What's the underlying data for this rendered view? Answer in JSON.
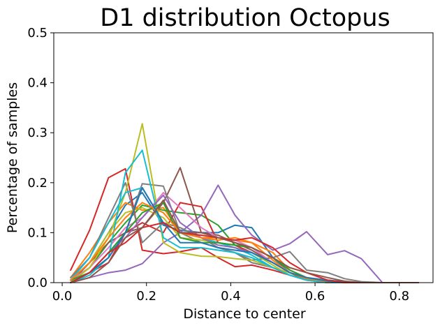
{
  "chart_data": {
    "type": "line",
    "title": "D1 distribution Octopus",
    "xlabel": "Distance to center",
    "ylabel": "Percentage of samples",
    "xlim": [
      -0.02,
      0.88
    ],
    "ylim": [
      0.0,
      0.5
    ],
    "xticks": [
      0.0,
      0.2,
      0.4,
      0.6,
      0.8
    ],
    "xtick_labels": [
      "0.0",
      "0.2",
      "0.4",
      "0.6",
      "0.8"
    ],
    "yticks": [
      0.0,
      0.1,
      0.2,
      0.3,
      0.4,
      0.5
    ],
    "ytick_labels": [
      "0.0",
      "0.1",
      "0.2",
      "0.3",
      "0.4",
      "0.5"
    ],
    "grid": false,
    "series": [
      {
        "color": "#1f77b4",
        "x": [
          0.02,
          0.065,
          0.11,
          0.15,
          0.19,
          0.24,
          0.28,
          0.33,
          0.37,
          0.41,
          0.45,
          0.5,
          0.54,
          0.58,
          0.63,
          0.67,
          0.71,
          0.76,
          0.8,
          0.845
        ],
        "y": [
          0.005,
          0.04,
          0.1,
          0.155,
          0.18,
          0.115,
          0.105,
          0.1,
          0.1,
          0.115,
          0.11,
          0.05,
          0.02,
          0.01,
          0.005,
          0.002,
          0,
          0,
          0,
          0
        ]
      },
      {
        "color": "#ff7f0e",
        "x": [
          0.02,
          0.065,
          0.11,
          0.15,
          0.19,
          0.24,
          0.28,
          0.33,
          0.37,
          0.41,
          0.45,
          0.5,
          0.54,
          0.58,
          0.63,
          0.67,
          0.71,
          0.76,
          0.8,
          0.845
        ],
        "y": [
          0.01,
          0.06,
          0.12,
          0.16,
          0.145,
          0.15,
          0.1,
          0.09,
          0.09,
          0.085,
          0.08,
          0.06,
          0.025,
          0.01,
          0.003,
          0,
          0,
          0,
          0,
          0
        ]
      },
      {
        "color": "#2ca02c",
        "x": [
          0.02,
          0.065,
          0.11,
          0.15,
          0.19,
          0.24,
          0.28,
          0.33,
          0.37,
          0.41,
          0.45,
          0.5,
          0.54,
          0.58,
          0.63,
          0.67,
          0.71,
          0.76,
          0.8,
          0.845
        ],
        "y": [
          0.0,
          0.03,
          0.08,
          0.12,
          0.155,
          0.145,
          0.14,
          0.135,
          0.115,
          0.075,
          0.06,
          0.04,
          0.02,
          0.005,
          0,
          0,
          0,
          0,
          0,
          0
        ]
      },
      {
        "color": "#d62728",
        "x": [
          0.02,
          0.065,
          0.11,
          0.15,
          0.19,
          0.24,
          0.28,
          0.33,
          0.37,
          0.41,
          0.45,
          0.5,
          0.54,
          0.58,
          0.63,
          0.67,
          0.71,
          0.76,
          0.8,
          0.845
        ],
        "y": [
          0.025,
          0.105,
          0.21,
          0.228,
          0.065,
          0.058,
          0.062,
          0.07,
          0.05,
          0.032,
          0.035,
          0.025,
          0.015,
          0.005,
          0,
          0,
          0,
          0,
          0,
          0
        ]
      },
      {
        "color": "#d62728",
        "x": [
          0.02,
          0.065,
          0.11,
          0.15,
          0.19,
          0.24,
          0.28,
          0.33,
          0.37,
          0.41,
          0.45,
          0.5,
          0.54,
          0.58,
          0.63,
          0.67,
          0.71,
          0.76,
          0.8,
          0.845
        ],
        "y": [
          0.0,
          0.02,
          0.04,
          0.1,
          0.12,
          0.1,
          0.16,
          0.152,
          0.08,
          0.075,
          0.06,
          0.04,
          0.02,
          0.01,
          0.002,
          0,
          0,
          0,
          0,
          0
        ]
      },
      {
        "color": "#9467bd",
        "x": [
          0.02,
          0.065,
          0.11,
          0.15,
          0.19,
          0.24,
          0.28,
          0.33,
          0.37,
          0.41,
          0.45,
          0.5,
          0.54,
          0.58,
          0.63,
          0.67,
          0.71,
          0.76,
          0.8,
          0.845
        ],
        "y": [
          0.0,
          0.01,
          0.02,
          0.025,
          0.038,
          0.08,
          0.1,
          0.135,
          0.195,
          0.135,
          0.095,
          0.065,
          0.078,
          0.102,
          0.056,
          0.064,
          0.048,
          0,
          0,
          0
        ]
      },
      {
        "color": "#8c564b",
        "x": [
          0.02,
          0.065,
          0.11,
          0.15,
          0.19,
          0.24,
          0.28,
          0.33,
          0.37,
          0.41,
          0.45,
          0.5,
          0.54,
          0.58,
          0.63,
          0.67,
          0.71,
          0.76,
          0.8,
          0.845
        ],
        "y": [
          0.0,
          0.04,
          0.08,
          0.1,
          0.11,
          0.16,
          0.23,
          0.1,
          0.095,
          0.08,
          0.065,
          0.04,
          0.02,
          0.005,
          0,
          0,
          0,
          0,
          0,
          0
        ]
      },
      {
        "color": "#e377c2",
        "x": [
          0.02,
          0.065,
          0.11,
          0.15,
          0.19,
          0.24,
          0.28,
          0.33,
          0.37,
          0.41,
          0.45,
          0.5,
          0.54,
          0.58,
          0.63,
          0.67,
          0.71,
          0.76,
          0.8,
          0.845
        ],
        "y": [
          0.005,
          0.03,
          0.07,
          0.11,
          0.13,
          0.18,
          0.15,
          0.11,
          0.09,
          0.085,
          0.07,
          0.04,
          0.02,
          0.01,
          0,
          0,
          0,
          0,
          0,
          0
        ]
      },
      {
        "color": "#7f7f7f",
        "x": [
          0.02,
          0.065,
          0.11,
          0.15,
          0.19,
          0.24,
          0.28,
          0.33,
          0.37,
          0.41,
          0.45,
          0.5,
          0.54,
          0.58,
          0.63,
          0.67,
          0.71,
          0.76,
          0.8,
          0.845
        ],
        "y": [
          0.01,
          0.05,
          0.13,
          0.2,
          0.08,
          0.12,
          0.11,
          0.09,
          0.07,
          0.06,
          0.045,
          0.05,
          0.062,
          0.025,
          0.02,
          0.008,
          0.002,
          0,
          0,
          0
        ]
      },
      {
        "color": "#7f7f7f",
        "x": [
          0.02,
          0.065,
          0.11,
          0.15,
          0.19,
          0.24,
          0.28,
          0.33,
          0.37,
          0.41,
          0.45,
          0.5,
          0.54,
          0.58,
          0.63,
          0.67,
          0.71,
          0.76,
          0.8,
          0.845
        ],
        "y": [
          0.005,
          0.02,
          0.05,
          0.1,
          0.198,
          0.193,
          0.1,
          0.08,
          0.07,
          0.06,
          0.04,
          0.03,
          0.015,
          0.006,
          0.002,
          0,
          0,
          0,
          0,
          0
        ]
      },
      {
        "color": "#bcbd22",
        "x": [
          0.02,
          0.065,
          0.11,
          0.15,
          0.19,
          0.24,
          0.28,
          0.33,
          0.37,
          0.41,
          0.45,
          0.5,
          0.54,
          0.58,
          0.63,
          0.67,
          0.71,
          0.76,
          0.8,
          0.845
        ],
        "y": [
          0.0,
          0.03,
          0.09,
          0.18,
          0.318,
          0.08,
          0.06,
          0.053,
          0.052,
          0.048,
          0.045,
          0.03,
          0.02,
          0.01,
          0.003,
          0,
          0,
          0,
          0,
          0
        ]
      },
      {
        "color": "#bcbd22",
        "x": [
          0.02,
          0.065,
          0.11,
          0.15,
          0.19,
          0.24,
          0.28,
          0.33,
          0.37,
          0.41,
          0.45,
          0.5,
          0.54,
          0.58,
          0.63,
          0.67,
          0.71,
          0.76,
          0.8,
          0.845
        ],
        "y": [
          0.005,
          0.04,
          0.1,
          0.14,
          0.15,
          0.13,
          0.09,
          0.085,
          0.08,
          0.07,
          0.06,
          0.035,
          0.015,
          0.005,
          0,
          0,
          0,
          0,
          0,
          0
        ]
      },
      {
        "color": "#17becf",
        "x": [
          0.02,
          0.065,
          0.11,
          0.15,
          0.19,
          0.24,
          0.28,
          0.33,
          0.37,
          0.41,
          0.45,
          0.5,
          0.54,
          0.58,
          0.63,
          0.67,
          0.71,
          0.76,
          0.8,
          0.845
        ],
        "y": [
          0.0,
          0.015,
          0.05,
          0.22,
          0.265,
          0.09,
          0.07,
          0.07,
          0.065,
          0.06,
          0.05,
          0.03,
          0.015,
          0.005,
          0,
          0,
          0,
          0,
          0,
          0
        ]
      },
      {
        "color": "#17becf",
        "x": [
          0.02,
          0.065,
          0.11,
          0.15,
          0.19,
          0.24,
          0.28,
          0.33,
          0.37,
          0.41,
          0.45,
          0.5,
          0.54,
          0.58,
          0.63,
          0.67,
          0.71,
          0.76,
          0.8,
          0.845
        ],
        "y": [
          0.005,
          0.05,
          0.12,
          0.18,
          0.19,
          0.12,
          0.1,
          0.09,
          0.08,
          0.07,
          0.055,
          0.03,
          0.015,
          0.005,
          0,
          0,
          0,
          0,
          0,
          0
        ]
      },
      {
        "color": "#9467bd",
        "x": [
          0.02,
          0.065,
          0.11,
          0.15,
          0.19,
          0.24,
          0.28,
          0.33,
          0.37,
          0.41,
          0.45,
          0.5,
          0.54,
          0.58,
          0.63,
          0.67,
          0.71,
          0.76,
          0.8,
          0.845
        ],
        "y": [
          0.0,
          0.02,
          0.06,
          0.09,
          0.13,
          0.175,
          0.12,
          0.09,
          0.075,
          0.07,
          0.06,
          0.04,
          0.02,
          0.01,
          0.003,
          0,
          0,
          0,
          0,
          0
        ]
      },
      {
        "color": "#2ca02c",
        "x": [
          0.02,
          0.065,
          0.11,
          0.15,
          0.19,
          0.24,
          0.28,
          0.33,
          0.37,
          0.41,
          0.45,
          0.5,
          0.54,
          0.58,
          0.63,
          0.67,
          0.71,
          0.76,
          0.8,
          0.845
        ],
        "y": [
          0.005,
          0.02,
          0.06,
          0.1,
          0.14,
          0.16,
          0.09,
          0.08,
          0.08,
          0.075,
          0.07,
          0.05,
          0.025,
          0.01,
          0.002,
          0,
          0,
          0,
          0,
          0
        ]
      },
      {
        "color": "#ff7f0e",
        "x": [
          0.02,
          0.065,
          0.11,
          0.15,
          0.19,
          0.24,
          0.28,
          0.33,
          0.37,
          0.41,
          0.45,
          0.5,
          0.54,
          0.58,
          0.63,
          0.67,
          0.71,
          0.76,
          0.8,
          0.845
        ],
        "y": [
          0.005,
          0.04,
          0.09,
          0.13,
          0.16,
          0.14,
          0.1,
          0.09,
          0.085,
          0.09,
          0.08,
          0.045,
          0.02,
          0.008,
          0.002,
          0,
          0,
          0,
          0,
          0
        ]
      },
      {
        "color": "#1f77b4",
        "x": [
          0.02,
          0.065,
          0.11,
          0.15,
          0.19,
          0.24,
          0.28,
          0.33,
          0.37,
          0.41,
          0.45,
          0.5,
          0.54,
          0.58,
          0.63,
          0.67,
          0.71,
          0.76,
          0.8,
          0.845
        ],
        "y": [
          0.0,
          0.02,
          0.05,
          0.1,
          0.19,
          0.12,
          0.08,
          0.08,
          0.07,
          0.065,
          0.06,
          0.04,
          0.02,
          0.01,
          0.003,
          0,
          0,
          0,
          0,
          0
        ]
      },
      {
        "color": "#d62728",
        "x": [
          0.02,
          0.065,
          0.11,
          0.15,
          0.19,
          0.24,
          0.28,
          0.33,
          0.37,
          0.41,
          0.45,
          0.5,
          0.54,
          0.58,
          0.63,
          0.67,
          0.71,
          0.76,
          0.8,
          0.845
        ],
        "y": [
          0.0,
          0.02,
          0.06,
          0.08,
          0.11,
          0.12,
          0.1,
          0.095,
          0.09,
          0.085,
          0.09,
          0.07,
          0.04,
          0.02,
          0.005,
          0,
          0,
          0,
          0,
          0
        ]
      },
      {
        "color": "#8c564b",
        "x": [
          0.02,
          0.065,
          0.11,
          0.15,
          0.19,
          0.24,
          0.28,
          0.33,
          0.37,
          0.41,
          0.45,
          0.5,
          0.54,
          0.58,
          0.63,
          0.67,
          0.71,
          0.76,
          0.8,
          0.845
        ],
        "y": [
          0.0,
          0.01,
          0.04,
          0.09,
          0.11,
          0.165,
          0.1,
          0.1,
          0.09,
          0.08,
          0.07,
          0.05,
          0.03,
          0.02,
          0.01,
          0.003,
          0,
          0,
          0,
          0
        ]
      }
    ]
  }
}
